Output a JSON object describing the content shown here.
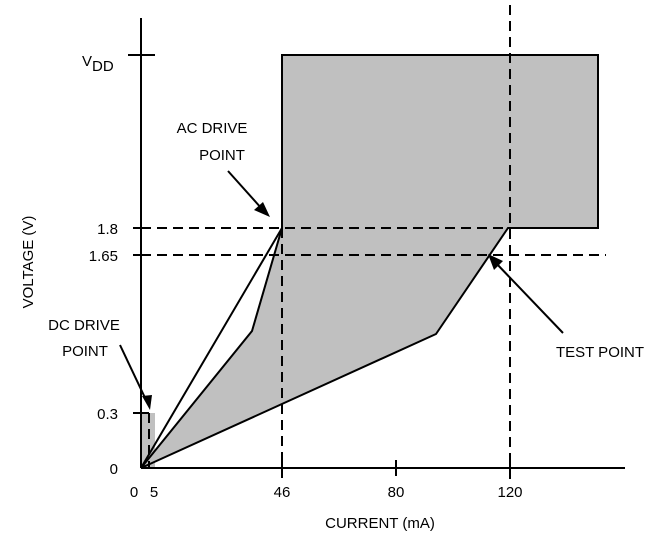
{
  "chart_data": {
    "type": "area",
    "xlabel": "CURRENT (mA)",
    "ylabel": "VOLTAGE (V)",
    "x_ticks": [
      "0",
      "5",
      "46",
      "80",
      "120"
    ],
    "y_ticks": [
      "0",
      "0.3",
      "1.65",
      "1.8"
    ],
    "vdd_label": {
      "main": "V",
      "sub": "DD"
    },
    "annotations": {
      "ac_drive": {
        "line1": "AC DRIVE",
        "line2": "POINT"
      },
      "dc_drive": {
        "line1": "DC DRIVE",
        "line2": "POINT"
      },
      "test_point": "TEST POINT"
    },
    "shaded_color": "#c0c0c0",
    "operating_region_upper": [
      [
        0,
        0
      ],
      [
        5,
        0.3
      ],
      [
        46,
        1.8
      ],
      [
        46,
        2.85
      ],
      [
        156,
        2.85
      ],
      [
        156,
        1.8
      ],
      [
        120,
        1.8
      ],
      [
        95,
        0.75
      ],
      [
        0,
        0
      ]
    ],
    "dc_region_box": {
      "x": [
        0,
        5
      ],
      "y": [
        0,
        0.3
      ]
    },
    "guide_lines": {
      "vertical_x": [
        5,
        46,
        120
      ],
      "horizontal_y": [
        1.8,
        1.65
      ]
    }
  }
}
